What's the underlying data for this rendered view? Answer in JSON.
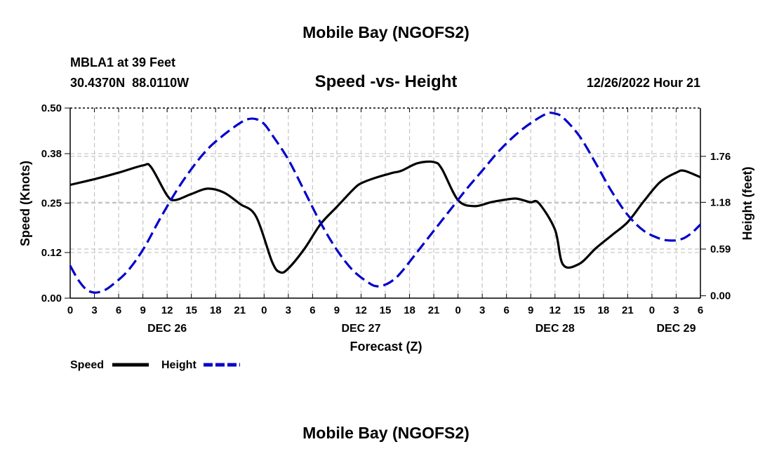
{
  "chart_data": {
    "type": "line",
    "title": "Mobile Bay (NGOFS2)",
    "subtitle": "Speed -vs- Height",
    "station": "MBLA1 at 39 Feet",
    "coords": "30.4370N  88.0110W",
    "timestamp": "12/26/2022 Hour 21",
    "xlabel": "Forecast (Z)",
    "ylabel_left": "Speed (Knots)",
    "ylabel_right": "Height (feet)",
    "x_range_hours": [
      0,
      78
    ],
    "x_ticks": [
      {
        "h": 0,
        "label": "0"
      },
      {
        "h": 3,
        "label": "3"
      },
      {
        "h": 6,
        "label": "6"
      },
      {
        "h": 9,
        "label": "9"
      },
      {
        "h": 12,
        "label": "12"
      },
      {
        "h": 15,
        "label": "15"
      },
      {
        "h": 18,
        "label": "18"
      },
      {
        "h": 21,
        "label": "21"
      },
      {
        "h": 24,
        "label": "0"
      },
      {
        "h": 27,
        "label": "3"
      },
      {
        "h": 30,
        "label": "6"
      },
      {
        "h": 33,
        "label": "9"
      },
      {
        "h": 36,
        "label": "12"
      },
      {
        "h": 39,
        "label": "15"
      },
      {
        "h": 42,
        "label": "18"
      },
      {
        "h": 45,
        "label": "21"
      },
      {
        "h": 48,
        "label": "0"
      },
      {
        "h": 51,
        "label": "3"
      },
      {
        "h": 54,
        "label": "6"
      },
      {
        "h": 57,
        "label": "9"
      },
      {
        "h": 60,
        "label": "12"
      },
      {
        "h": 63,
        "label": "15"
      },
      {
        "h": 66,
        "label": "18"
      },
      {
        "h": 69,
        "label": "21"
      },
      {
        "h": 72,
        "label": "0"
      },
      {
        "h": 75,
        "label": "3"
      },
      {
        "h": 78,
        "label": "6"
      }
    ],
    "date_labels": [
      {
        "h": 12,
        "label": "DEC 26"
      },
      {
        "h": 36,
        "label": "DEC 27"
      },
      {
        "h": 60,
        "label": "DEC 28"
      },
      {
        "h": 75,
        "label": "DEC 29"
      }
    ],
    "y_left": {
      "range": [
        0,
        0.5
      ],
      "ticks": [
        0.0,
        0.12,
        0.25,
        0.38,
        0.5
      ],
      "tick_labels": [
        "0.00",
        "0.12",
        "0.25",
        "0.38",
        "0.50"
      ]
    },
    "y_right": {
      "range": [
        -0.03,
        2.37
      ],
      "ticks": [
        0.0,
        0.59,
        1.18,
        1.76
      ],
      "tick_labels": [
        "0.00",
        "0.59",
        "1.18",
        "1.76"
      ]
    },
    "grid": true,
    "legend": {
      "position": "bottom-left",
      "items": [
        {
          "label": "Speed",
          "color": "#000000",
          "style": "solid"
        },
        {
          "label": "Height",
          "color": "#0000cc",
          "style": "dashed"
        }
      ]
    },
    "series": [
      {
        "name": "Speed",
        "axis": "left",
        "color": "#000000",
        "style": "solid",
        "x": [
          0,
          3,
          6,
          9,
          10,
          12,
          13,
          15,
          17,
          19,
          21,
          23,
          25,
          26,
          27,
          29,
          31,
          33,
          35,
          36,
          38,
          40,
          41,
          43,
          45,
          46,
          48,
          50,
          52,
          53,
          55,
          56,
          57,
          58,
          60,
          61,
          63,
          65,
          67,
          69,
          71,
          73,
          75,
          76,
          78
        ],
        "values": [
          0.298,
          0.313,
          0.33,
          0.349,
          0.345,
          0.27,
          0.258,
          0.274,
          0.288,
          0.278,
          0.248,
          0.215,
          0.095,
          0.068,
          0.078,
          0.13,
          0.195,
          0.24,
          0.285,
          0.302,
          0.318,
          0.33,
          0.335,
          0.355,
          0.358,
          0.34,
          0.258,
          0.242,
          0.252,
          0.256,
          0.262,
          0.258,
          0.252,
          0.25,
          0.18,
          0.088,
          0.09,
          0.13,
          0.165,
          0.2,
          0.255,
          0.305,
          0.33,
          0.335,
          0.318
        ]
      },
      {
        "name": "Height",
        "axis": "right",
        "color": "#0000cc",
        "style": "dashed",
        "x": [
          0,
          1,
          2,
          3,
          4,
          5,
          7,
          9,
          11,
          13,
          15,
          17,
          19,
          21,
          22,
          23,
          24,
          25,
          27,
          29,
          31,
          33,
          35,
          37,
          38,
          39,
          40,
          41,
          43,
          45,
          47,
          49,
          51,
          53,
          55,
          57,
          59,
          60,
          61,
          63,
          65,
          67,
          69,
          71,
          73,
          74,
          75,
          76,
          77,
          78
        ],
        "values": [
          0.38,
          0.2,
          0.08,
          0.04,
          0.06,
          0.12,
          0.3,
          0.58,
          0.95,
          1.3,
          1.6,
          1.85,
          2.03,
          2.18,
          2.23,
          2.23,
          2.17,
          2.03,
          1.72,
          1.32,
          0.92,
          0.58,
          0.32,
          0.16,
          0.12,
          0.14,
          0.2,
          0.3,
          0.56,
          0.82,
          1.08,
          1.34,
          1.58,
          1.82,
          2.02,
          2.18,
          2.3,
          2.3,
          2.25,
          2.02,
          1.68,
          1.32,
          1.02,
          0.82,
          0.72,
          0.7,
          0.7,
          0.73,
          0.8,
          0.9
        ]
      }
    ]
  },
  "footer_title": "Mobile Bay (NGOFS2)"
}
